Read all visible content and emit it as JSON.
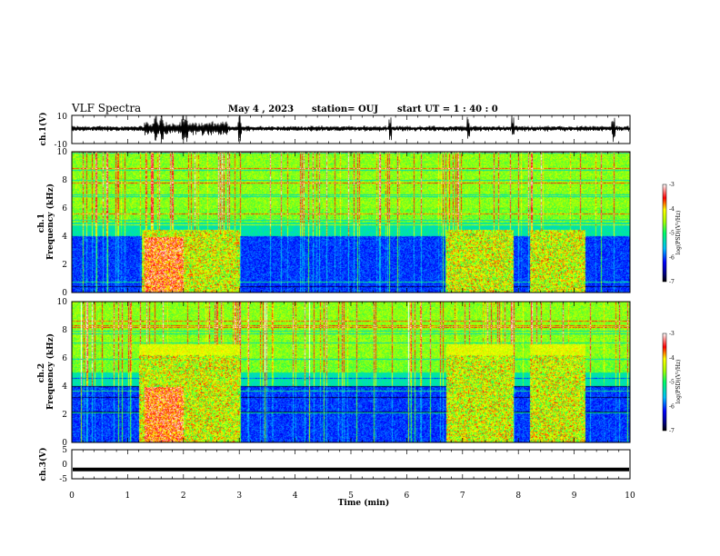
{
  "header": {
    "title": "VLF Spectra",
    "date": "May 4 , 2023",
    "station": "station= OUJ",
    "start": "start UT =  1 : 40 : 0"
  },
  "chart_data": [
    {
      "type": "line",
      "name": "ch1-waveform",
      "ylabel": "ch.1(V)",
      "ylim": [
        -10,
        10
      ],
      "y_ticks": [
        "10",
        "-10"
      ],
      "xlim": [
        0,
        10
      ],
      "events_min": [
        1.5,
        1.6,
        2.0,
        2.05,
        3.0,
        5.7,
        7.1,
        7.9,
        9.7
      ]
    },
    {
      "type": "heatmap",
      "name": "ch1-spectrogram",
      "ylabel": "ch.1\nFrequency (kHz)",
      "ylim": [
        0,
        10
      ],
      "y_ticks": [
        "0",
        "2",
        "4",
        "6",
        "8",
        "10"
      ],
      "xlim": [
        0,
        10
      ],
      "colorbar": {
        "label": "log(PSD)(V²/Hz)",
        "range": [
          -7,
          -3
        ],
        "ticks": [
          "-3",
          "-4",
          "-5",
          "-6",
          "-7"
        ]
      },
      "active_intervals_min": [
        [
          1.25,
          3.0
        ],
        [
          6.7,
          7.9
        ],
        [
          8.2,
          9.2
        ]
      ]
    },
    {
      "type": "heatmap",
      "name": "ch2-spectrogram",
      "ylabel": "ch.2\nFrequency (kHz)",
      "ylim": [
        0,
        10
      ],
      "y_ticks": [
        "0",
        "2",
        "4",
        "6",
        "8",
        "10"
      ],
      "xlim": [
        0,
        10
      ],
      "colorbar": {
        "label": "log(PSD)(V²/Hz)",
        "range": [
          -7,
          -3
        ],
        "ticks": [
          "-3",
          "-4",
          "-5",
          "-6",
          "-7"
        ]
      },
      "active_intervals_min": [
        [
          1.2,
          3.0
        ],
        [
          6.7,
          7.9
        ],
        [
          8.2,
          9.2
        ]
      ]
    },
    {
      "type": "line",
      "name": "ch3-waveform",
      "ylabel": "ch.3(V)",
      "ylim": [
        -5,
        5
      ],
      "y_ticks": [
        "5",
        "0",
        "-5"
      ],
      "xlim": [
        0,
        10
      ],
      "x_ticks": [
        "0",
        "1",
        "2",
        "3",
        "4",
        "5",
        "6",
        "7",
        "8",
        "9",
        "10"
      ],
      "xlabel": "Time (min)",
      "y": -1.8
    }
  ]
}
